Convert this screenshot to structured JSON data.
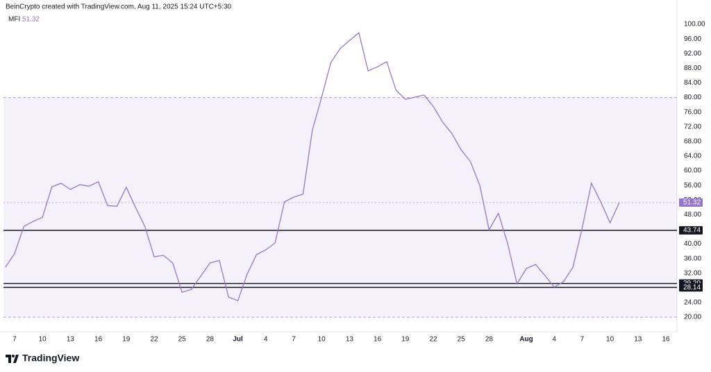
{
  "header": "BeinCrypto created with TradingView.com, Aug 11, 2025 15:24 UTC+5:30",
  "brand": "TradingView",
  "chart_data": {
    "type": "line",
    "indicator": "MFI",
    "categories": [
      null,
      "7",
      null,
      null,
      "10",
      null,
      null,
      "13",
      null,
      null,
      "16",
      null,
      null,
      "19",
      null,
      null,
      "22",
      null,
      null,
      "25",
      null,
      null,
      "28",
      null,
      null,
      "Jul",
      null,
      null,
      "4",
      null,
      null,
      "7",
      null,
      null,
      "10",
      null,
      null,
      "13",
      null,
      null,
      "16",
      null,
      null,
      "19",
      null,
      null,
      "22",
      null,
      null,
      "25",
      null,
      null,
      "28",
      null,
      null,
      null,
      "Aug",
      null,
      null,
      "4",
      null,
      null,
      "7",
      null,
      null,
      "10",
      null,
      null,
      "13",
      null,
      null,
      "16",
      null
    ],
    "series": [
      {
        "name": "MFI",
        "color": "#9575cd",
        "values": [
          33.6,
          37.4,
          44.8,
          46.2,
          47.3,
          55.6,
          56.6,
          54.9,
          56.2,
          55.8,
          57.0,
          50.5,
          50.3,
          55.5,
          50.0,
          44.8,
          36.5,
          36.9,
          34.8,
          26.8,
          27.6,
          31.2,
          34.8,
          35.5,
          25.5,
          24.5,
          31.8,
          37.1,
          38.4,
          40.3,
          51.5,
          52.8,
          53.6,
          71.0,
          80.1,
          89.6,
          93.4,
          95.6,
          97.7,
          87.3,
          88.4,
          89.8,
          82.0,
          79.5,
          80.1,
          80.7,
          77.6,
          73.3,
          70.2,
          65.7,
          62.5,
          56.0,
          43.9,
          48.4,
          40.1,
          29.1,
          33.3,
          34.4,
          31.4,
          28.2,
          29.7,
          33.6,
          44.3,
          56.6,
          51.5,
          45.8,
          51.32,
          null,
          null,
          null,
          null,
          null,
          null
        ]
      }
    ],
    "ylim": [
      16.6,
      105.7
    ],
    "yticks": [
      {
        "value": 20,
        "label": "20.00"
      },
      {
        "value": 24,
        "label": "24.00"
      },
      {
        "value": 28,
        "label": "28.00"
      },
      {
        "value": 32,
        "label": "32.00"
      },
      {
        "value": 36,
        "label": "36.00"
      },
      {
        "value": 40,
        "label": "40.00"
      },
      {
        "value": 44,
        "label": "44.00"
      },
      {
        "value": 48,
        "label": "48.00"
      },
      {
        "value": 52,
        "label": "52.00"
      },
      {
        "value": 56,
        "label": "56.00"
      },
      {
        "value": 60,
        "label": "60.00"
      },
      {
        "value": 64,
        "label": "64.00"
      },
      {
        "value": 68,
        "label": "68.00"
      },
      {
        "value": 72,
        "label": "72.00"
      },
      {
        "value": 76,
        "label": "76.00"
      },
      {
        "value": 80,
        "label": "80.00"
      },
      {
        "value": 84,
        "label": "84.00"
      },
      {
        "value": 88,
        "label": "88.00"
      },
      {
        "value": 92,
        "label": "92.00"
      },
      {
        "value": 96,
        "label": "96.00"
      },
      {
        "value": 100,
        "label": "100.00"
      }
    ],
    "band": [
      20,
      80
    ],
    "band_color": "#9575cd",
    "levels": [
      43.74,
      {
        "value": 29.2,
        "label": "29.20"
      },
      28.14
    ],
    "level_color": "#131722"
  }
}
